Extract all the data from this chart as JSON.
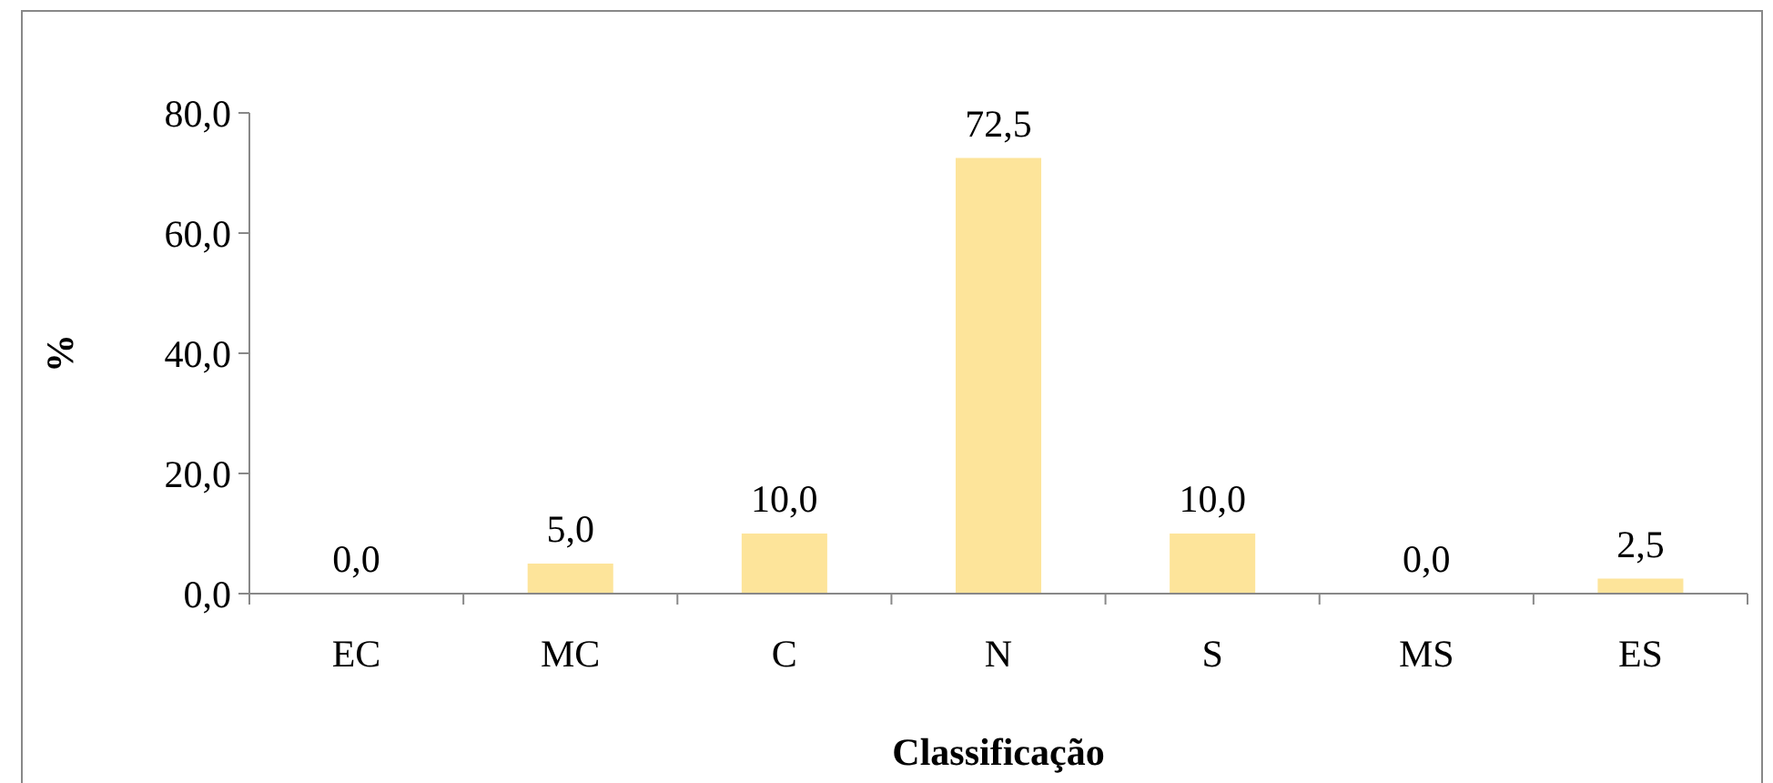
{
  "chart_data": {
    "type": "bar",
    "xlabel": "Classificação",
    "ylabel": "%",
    "categories": [
      "EC",
      "MC",
      "C",
      "N",
      "S",
      "MS",
      "ES"
    ],
    "values": [
      0,
      5,
      10,
      72.5,
      10,
      0,
      2.5
    ],
    "value_labels": [
      "0,0",
      "5,0",
      "10,0",
      "72,5",
      "10,0",
      "0,0",
      "2,5"
    ],
    "color": "#fde49a",
    "ylim": [
      0,
      80
    ],
    "yticks": [
      {
        "value": 0,
        "label": "0,0"
      },
      {
        "value": 20,
        "label": "20,0"
      },
      {
        "value": 40,
        "label": "40,0"
      },
      {
        "value": 60,
        "label": "60,0"
      },
      {
        "value": 80,
        "label": "80,0"
      }
    ],
    "grid": false
  }
}
